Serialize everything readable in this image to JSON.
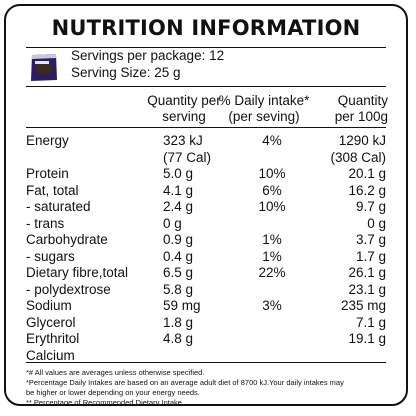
{
  "title": "NUTRITION INFORMATION",
  "servings_per_package": "Servings per package: 12",
  "serving_size": "Serving Size: 25 g",
  "headers": {
    "per_serving_1": "Quantity per",
    "per_serving_2": "serving",
    "daily_1": "% Daily  intake*",
    "daily_2": "(per seving)",
    "per100_1": "Quantity",
    "per100_2": "per 100g"
  },
  "rows": [
    {
      "label": "Energy",
      "serving": "323 kJ",
      "daily": "4%",
      "per100": "1290 kJ"
    },
    {
      "label": "",
      "serving": "(77 Cal)",
      "daily": "",
      "per100": "(308 Cal)"
    },
    {
      "label": "Protein",
      "serving": "5.0 g",
      "daily": "10%",
      "per100": "20.1 g"
    },
    {
      "label": "Fat, total",
      "serving": "4.1 g",
      "daily": "6%",
      "per100": "16.2 g"
    },
    {
      "label": " - saturated",
      "serving": "2.4 g",
      "daily": "10%",
      "per100": "9.7 g"
    },
    {
      "label": " - trans",
      "serving": "0 g",
      "daily": "",
      "per100": "0 g"
    },
    {
      "label": "Carbohydrate",
      "serving": "0.9 g",
      "daily": "1%",
      "per100": "3.7 g"
    },
    {
      "label": " - sugars",
      "serving": "0.4 g",
      "daily": "1%",
      "per100": "1.7 g"
    },
    {
      "label": "Dietary fibre,total",
      "serving": "6.5 g",
      "daily": "22%",
      "per100": "26.1 g"
    },
    {
      "label": " - polydextrose",
      "serving": "5.8 g",
      "daily": "",
      "per100": "23.1 g"
    },
    {
      "label": "Sodium",
      "serving": "59 mg",
      "daily": "3%",
      "per100": "235 mg"
    },
    {
      "label": "Glycerol",
      "serving": "1.8 g",
      "daily": "",
      "per100": "7.1 g"
    },
    {
      "label": "Erythritol",
      "serving": "4.8 g",
      "daily": "",
      "per100": "19.1 g"
    },
    {
      "label": "Calcium",
      "serving": "",
      "daily": "",
      "per100": ""
    }
  ],
  "footnotes": [
    "*# All values are averages unless otherwise specified.",
    "*Percentage Daily Intakes are based on an average adult diet of 8700 kJ.Your daily intakes may",
    "be higher or lower depending on your energy needs.",
    "** Percentage of Recommended Dietary Intake."
  ],
  "package_icon": "product-package-icon",
  "package_color": "#2a1d66"
}
